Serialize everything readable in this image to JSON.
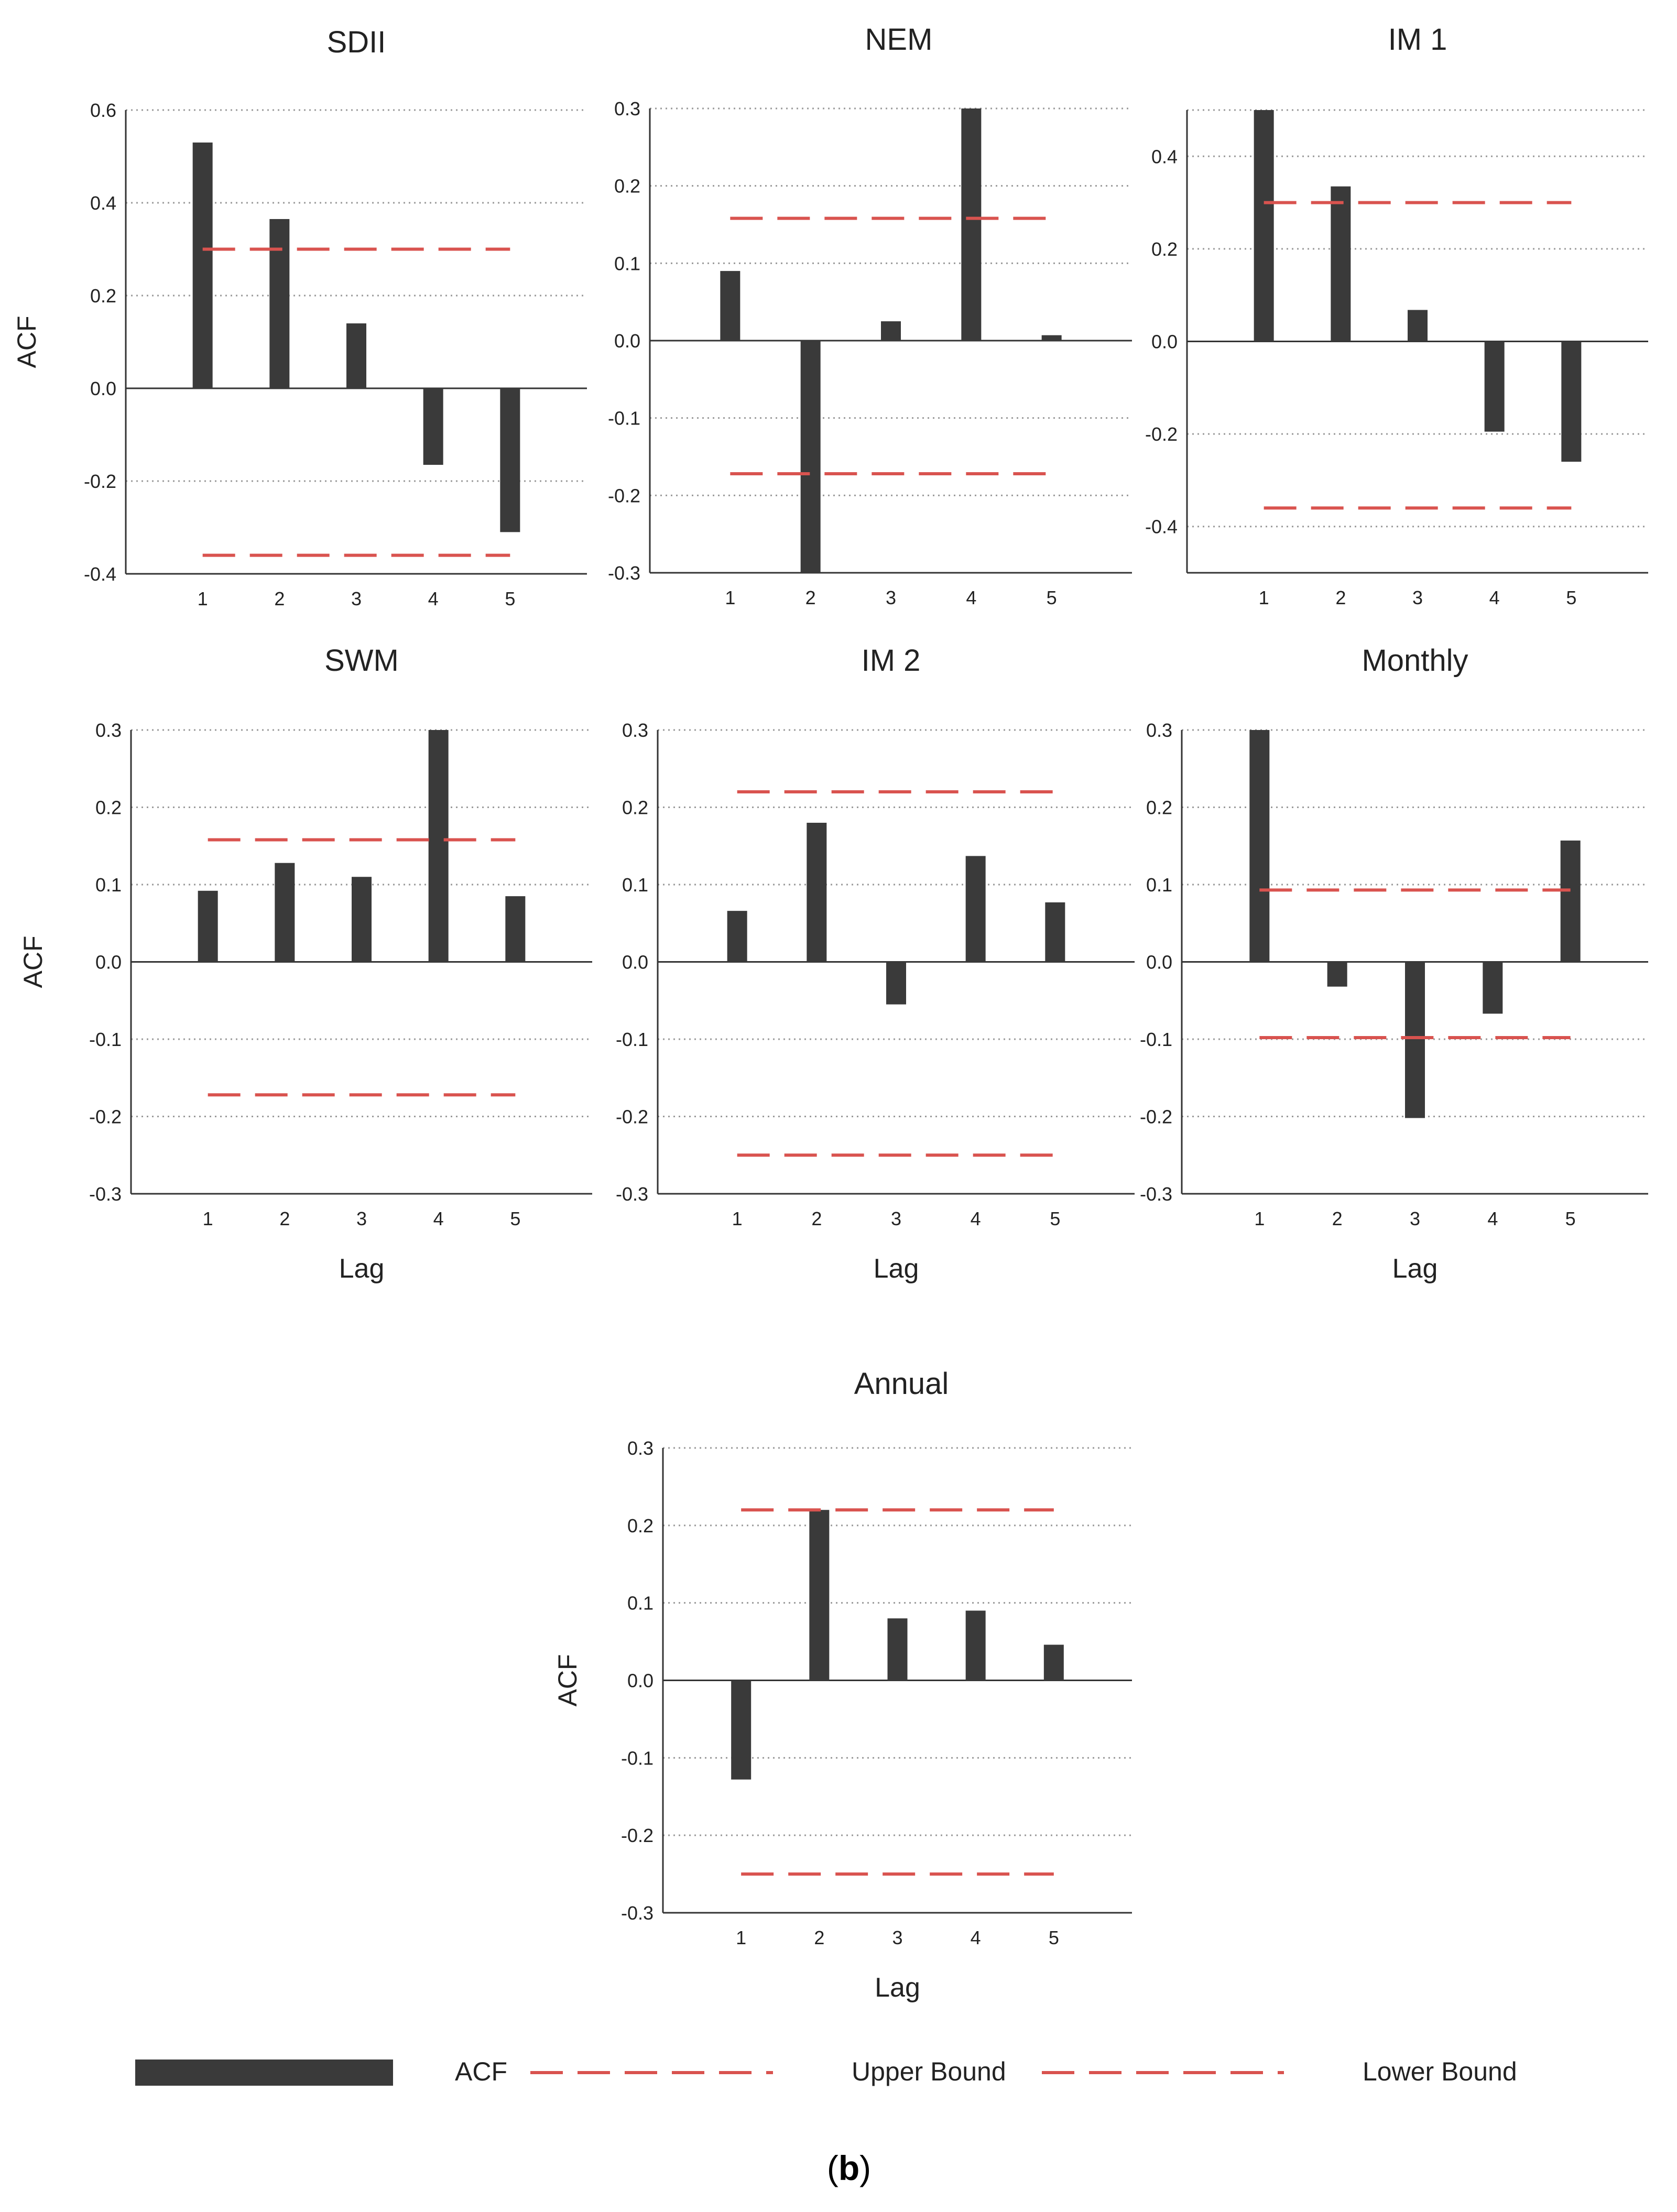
{
  "figure_label": "b",
  "colors": {
    "bar": "#3a3a3a",
    "bound": "#d9534f",
    "axis": "#333333",
    "grid": "#9a9a9a",
    "text": "#222222"
  },
  "legend": {
    "acf": "ACF",
    "upper": "Upper Bound",
    "lower": "Lower Bound"
  },
  "chart_data": [
    {
      "type": "bar",
      "title": "SDII",
      "xlabel": "",
      "ylabel": "ACF",
      "categories": [
        "1",
        "2",
        "3",
        "4",
        "5"
      ],
      "values": [
        0.53,
        0.365,
        0.14,
        -0.165,
        -0.31
      ],
      "upper_bound": 0.3,
      "lower_bound": -0.36,
      "ylim": [
        -0.4,
        0.6
      ],
      "yticks": [
        "0.6",
        "0.4",
        "0.2",
        "0.0",
        "-0.2",
        "-0.4"
      ],
      "grid": true
    },
    {
      "type": "bar",
      "title": "NEM",
      "xlabel": "",
      "ylabel": "",
      "categories": [
        "1",
        "2",
        "3",
        "4",
        "5"
      ],
      "values": [
        0.09,
        -0.3,
        0.025,
        0.3,
        0.007
      ],
      "upper_bound": 0.158,
      "lower_bound": -0.172,
      "ylim": [
        -0.3,
        0.3
      ],
      "yticks": [
        "0.3",
        "0.2",
        "0.1",
        "0.0",
        "-0.1",
        "-0.2",
        "-0.3"
      ],
      "grid": true
    },
    {
      "type": "bar",
      "title": "IM 1",
      "xlabel": "",
      "ylabel": "",
      "categories": [
        "1",
        "2",
        "3",
        "4",
        "5"
      ],
      "values": [
        0.5,
        0.335,
        0.068,
        -0.195,
        -0.26
      ],
      "upper_bound": 0.3,
      "lower_bound": -0.36,
      "ylim": [
        -0.5,
        0.5
      ],
      "yticks": [
        "0.4",
        "0.2",
        "0.0",
        "-0.2",
        "-0.4"
      ],
      "grid": true
    },
    {
      "type": "bar",
      "title": "SWM",
      "xlabel": "Lag",
      "ylabel": "ACF",
      "categories": [
        "1",
        "2",
        "3",
        "4",
        "5"
      ],
      "values": [
        0.092,
        0.128,
        0.11,
        0.3,
        0.085
      ],
      "upper_bound": 0.158,
      "lower_bound": -0.172,
      "ylim": [
        -0.3,
        0.3
      ],
      "yticks": [
        "0.3",
        "0.2",
        "0.1",
        "0.0",
        "-0.1",
        "-0.2",
        "-0.3"
      ],
      "grid": true
    },
    {
      "type": "bar",
      "title": "IM 2",
      "xlabel": "Lag",
      "ylabel": "",
      "categories": [
        "1",
        "2",
        "3",
        "4",
        "5"
      ],
      "values": [
        0.066,
        0.18,
        -0.055,
        0.137,
        0.077
      ],
      "upper_bound": 0.22,
      "lower_bound": -0.25,
      "ylim": [
        -0.3,
        0.3
      ],
      "yticks": [
        "0.3",
        "0.2",
        "0.1",
        "0.0",
        "-0.1",
        "-0.2",
        "-0.3"
      ],
      "grid": true
    },
    {
      "type": "bar",
      "title": "Monthly",
      "xlabel": "Lag",
      "ylabel": "",
      "categories": [
        "1",
        "2",
        "3",
        "4",
        "5"
      ],
      "values": [
        0.3,
        -0.032,
        -0.202,
        -0.067,
        0.157
      ],
      "upper_bound": 0.093,
      "lower_bound": -0.098,
      "ylim": [
        -0.3,
        0.3
      ],
      "yticks": [
        "0.3",
        "0.2",
        "0.1",
        "0.0",
        "-0.1",
        "-0.2",
        "-0.3"
      ],
      "grid": true
    },
    {
      "type": "bar",
      "title": "Annual",
      "xlabel": "Lag",
      "ylabel": "ACF",
      "categories": [
        "1",
        "2",
        "3",
        "4",
        "5"
      ],
      "values": [
        -0.128,
        0.22,
        0.08,
        0.09,
        0.046
      ],
      "upper_bound": 0.22,
      "lower_bound": -0.25,
      "ylim": [
        -0.3,
        0.3
      ],
      "yticks": [
        "0.3",
        "0.2",
        "0.1",
        "0.0",
        "-0.1",
        "-0.2",
        "-0.3"
      ],
      "grid": true
    }
  ]
}
